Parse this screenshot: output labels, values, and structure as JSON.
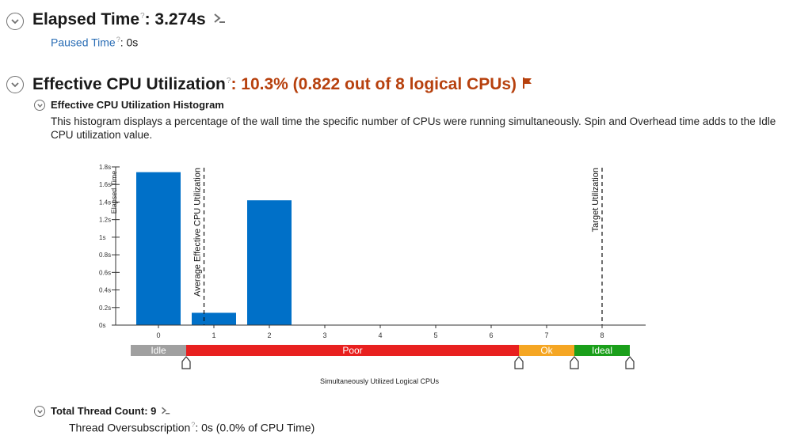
{
  "elapsed": {
    "title": "Elapsed Time",
    "value": ": 3.274s",
    "paused_label": "Paused Time",
    "paused_value": ": 0s"
  },
  "cpu": {
    "title": "Effective CPU Utilization",
    "value": ": 10.3% (0.822 out of 8 logical CPUs)",
    "accent_color": "#b7410e",
    "histogram": {
      "title": "Effective CPU Utilization Histogram",
      "description": "This histogram displays a percentage of the wall time the specific number of CPUs were running simultaneously. Spin and Overhead time adds to the Idle CPU utilization value."
    }
  },
  "threads": {
    "title": "Total Thread Count: 9",
    "oversub_label": "Thread Oversubscription",
    "oversub_value": ": 0s (0.0% of CPU Time)"
  },
  "help_glyph": "?",
  "chart_data": {
    "type": "bar",
    "x": [
      0,
      1,
      2,
      3,
      4,
      5,
      6,
      7,
      8
    ],
    "values": [
      1.74,
      0.14,
      1.42,
      0,
      0,
      0,
      0,
      0,
      0
    ],
    "y_ticks": [
      "0s",
      "0.2s",
      "0.4s",
      "0.6s",
      "0.8s",
      "1s",
      "1.2s",
      "1.4s",
      "1.6s",
      "1.8s"
    ],
    "ylim": [
      0,
      1.8
    ],
    "ylabel": "Elapsed Time",
    "xlabel": "Simultaneously Utilized Logical CPUs",
    "bar_color": "#0070c8",
    "markers": [
      {
        "label": "Average Effective CPU Utilization",
        "x": 0.822
      },
      {
        "label": "Target Utilization",
        "x": 8
      }
    ],
    "ranges": [
      {
        "label": "Idle",
        "from": -0.5,
        "to": 0.5,
        "color": "#a0a0a0"
      },
      {
        "label": "Poor",
        "from": 0.5,
        "to": 6.5,
        "color": "#e8201f"
      },
      {
        "label": "Ok",
        "from": 6.5,
        "to": 7.5,
        "color": "#f5a623"
      },
      {
        "label": "Ideal",
        "from": 7.5,
        "to": 8.5,
        "color": "#1a9f1a"
      }
    ]
  }
}
